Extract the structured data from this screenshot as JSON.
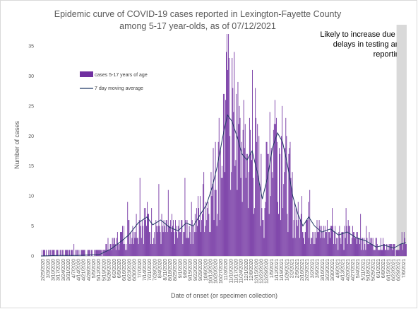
{
  "chart_data": {
    "type": "bar",
    "title": "Epidemic curve of COVID-19 cases reported in Lexington-Fayette County among 5-17 year-olds, as of 07/12/2021",
    "xlabel": "Date of onset (or specimen collection)",
    "ylabel": "Number of cases",
    "ylim": [
      0,
      35
    ],
    "yticks": [
      0,
      5,
      10,
      15,
      20,
      25,
      30,
      35
    ],
    "grid": false,
    "legend": "upper-left",
    "annotation": "Likely to increase due to delays in testing and reporting",
    "x_start": "2020-02-25",
    "x_end": "2021-07-12",
    "x_tick_labels": [
      "2/25/2020",
      "3/3/2020",
      "3/10/2020",
      "3/17/2020",
      "3/24/2020",
      "3/31/2020",
      "4/7/2020",
      "4/14/2020",
      "4/21/2020",
      "4/28/2020",
      "5/5/2020",
      "5/12/2020",
      "5/19/2020",
      "5/26/2020",
      "6/2/2020",
      "6/9/2020",
      "6/16/2020",
      "6/23/2020",
      "6/30/2020",
      "7/7/2020",
      "7/14/2020",
      "7/21/2020",
      "7/28/2020",
      "8/4/2020",
      "8/11/2020",
      "8/18/2020",
      "8/25/2020",
      "9/1/2020",
      "9/8/2020",
      "9/15/2020",
      "9/22/2020",
      "9/29/2020",
      "10/6/2020",
      "10/13/2020",
      "10/20/2020",
      "10/27/2020",
      "11/3/2020",
      "11/10/2020",
      "11/17/2020",
      "11/24/2020",
      "12/1/2020",
      "12/8/2020",
      "12/15/2020",
      "12/22/2020",
      "12/29/2020",
      "1/5/2021",
      "1/12/2021",
      "1/19/2021",
      "1/26/2021",
      "2/2/2021",
      "2/9/2021",
      "2/16/2021",
      "2/23/2021",
      "3/2/2021",
      "3/9/2021",
      "3/16/2021",
      "3/23/2021",
      "3/30/2021",
      "4/6/2021",
      "4/13/2021",
      "4/20/2021",
      "4/27/2021",
      "5/4/2021",
      "5/11/2021",
      "5/18/2021",
      "5/25/2021",
      "6/1/2021",
      "6/8/2021",
      "6/15/2021",
      "6/22/2021",
      "6/29/2021",
      "7/6/2021"
    ],
    "shaded_region": {
      "from": "2021-06-29",
      "to": "2021-07-12"
    },
    "series": [
      {
        "name": "cases 5-17 years of age",
        "kind": "bar",
        "color": "#7030a0",
        "anchors": [
          [
            "2020-02-25",
            0
          ],
          [
            "2020-03-14",
            1
          ],
          [
            "2020-03-15",
            0
          ],
          [
            "2020-04-10",
            1
          ],
          [
            "2020-04-11",
            0
          ],
          [
            "2020-05-20",
            1
          ],
          [
            "2020-06-01",
            2
          ],
          [
            "2020-06-15",
            3
          ],
          [
            "2020-07-01",
            5
          ],
          [
            "2020-07-15",
            6
          ],
          [
            "2020-08-01",
            5
          ],
          [
            "2020-08-15",
            4
          ],
          [
            "2020-09-01",
            4
          ],
          [
            "2020-09-15",
            5
          ],
          [
            "2020-10-01",
            7
          ],
          [
            "2020-10-15",
            10
          ],
          [
            "2020-10-25",
            14
          ],
          [
            "2020-11-01",
            20
          ],
          [
            "2020-11-08",
            24
          ],
          [
            "2020-11-15",
            22
          ],
          [
            "2020-11-22",
            19
          ],
          [
            "2020-12-01",
            16
          ],
          [
            "2020-12-10",
            16
          ],
          [
            "2020-12-20",
            14
          ],
          [
            "2020-12-28",
            8
          ],
          [
            "2021-01-03",
            16
          ],
          [
            "2021-01-10",
            20
          ],
          [
            "2021-01-17",
            19
          ],
          [
            "2021-01-24",
            16
          ],
          [
            "2021-02-01",
            11
          ],
          [
            "2021-02-08",
            8
          ],
          [
            "2021-02-15",
            5
          ],
          [
            "2021-02-25",
            6
          ],
          [
            "2021-03-05",
            5
          ],
          [
            "2021-03-15",
            4
          ],
          [
            "2021-04-01",
            4
          ],
          [
            "2021-04-15",
            4
          ],
          [
            "2021-05-01",
            3
          ],
          [
            "2021-05-15",
            3
          ],
          [
            "2021-06-01",
            2
          ],
          [
            "2021-06-15",
            2
          ],
          [
            "2021-07-01",
            1
          ],
          [
            "2021-07-12",
            2
          ]
        ],
        "peaks": [
          [
            "2020-06-23",
            9
          ],
          [
            "2020-07-10",
            13
          ],
          [
            "2020-08-05",
            12
          ],
          [
            "2020-08-18",
            11
          ],
          [
            "2020-09-10",
            13
          ],
          [
            "2020-10-06",
            14
          ],
          [
            "2020-10-22",
            19
          ],
          [
            "2020-11-03",
            27
          ],
          [
            "2020-11-08",
            31
          ],
          [
            "2020-11-14",
            33
          ],
          [
            "2020-11-20",
            27
          ],
          [
            "2020-12-02",
            22
          ],
          [
            "2020-12-12",
            31
          ],
          [
            "2020-12-16",
            28
          ],
          [
            "2021-01-12",
            26
          ],
          [
            "2021-01-05",
            24
          ],
          [
            "2021-01-22",
            25
          ],
          [
            "2021-02-02",
            19
          ],
          [
            "2021-02-18",
            10
          ],
          [
            "2021-03-01",
            11
          ],
          [
            "2021-04-01",
            8
          ],
          [
            "2021-04-20",
            8
          ],
          [
            "2021-05-10",
            7
          ],
          [
            "2021-06-10",
            3
          ],
          [
            "2021-07-06",
            4
          ],
          [
            "2021-07-09",
            4
          ]
        ]
      },
      {
        "name": "7 day moving average",
        "kind": "line",
        "color": "#1f3864",
        "values": [
          [
            "2020-02-25",
            0
          ],
          [
            "2020-03-20",
            0.1
          ],
          [
            "2020-04-15",
            0.1
          ],
          [
            "2020-05-15",
            0.2
          ],
          [
            "2020-06-01",
            1.2
          ],
          [
            "2020-06-15",
            2.5
          ],
          [
            "2020-06-25",
            3.5
          ],
          [
            "2020-07-08",
            5.5
          ],
          [
            "2020-07-20",
            6.5
          ],
          [
            "2020-07-28",
            5.2
          ],
          [
            "2020-08-08",
            6.0
          ],
          [
            "2020-08-20",
            4.8
          ],
          [
            "2020-09-01",
            4.2
          ],
          [
            "2020-09-12",
            5.5
          ],
          [
            "2020-09-22",
            5.0
          ],
          [
            "2020-10-01",
            6.8
          ],
          [
            "2020-10-10",
            8.5
          ],
          [
            "2020-10-18",
            11.5
          ],
          [
            "2020-10-25",
            15.0
          ],
          [
            "2020-11-01",
            19.5
          ],
          [
            "2020-11-08",
            23.5
          ],
          [
            "2020-11-14",
            22.5
          ],
          [
            "2020-11-21",
            20.0
          ],
          [
            "2020-11-28",
            17.0
          ],
          [
            "2020-12-05",
            16.0
          ],
          [
            "2020-12-12",
            17.5
          ],
          [
            "2020-12-19",
            14.0
          ],
          [
            "2020-12-26",
            9.5
          ],
          [
            "2021-01-02",
            13.0
          ],
          [
            "2021-01-09",
            18.0
          ],
          [
            "2021-01-16",
            20.5
          ],
          [
            "2021-01-23",
            19.0
          ],
          [
            "2021-01-30",
            15.0
          ],
          [
            "2021-02-06",
            10.0
          ],
          [
            "2021-02-13",
            7.0
          ],
          [
            "2021-02-20",
            5.0
          ],
          [
            "2021-02-28",
            6.5
          ],
          [
            "2021-03-08",
            5.0
          ],
          [
            "2021-03-18",
            4.0
          ],
          [
            "2021-03-30",
            4.5
          ],
          [
            "2021-04-10",
            3.5
          ],
          [
            "2021-04-22",
            4.0
          ],
          [
            "2021-05-05",
            3.0
          ],
          [
            "2021-05-18",
            2.5
          ],
          [
            "2021-06-01",
            1.5
          ],
          [
            "2021-06-12",
            1.8
          ],
          [
            "2021-06-25",
            1.3
          ],
          [
            "2021-07-05",
            2.0
          ],
          [
            "2021-07-12",
            2.2
          ]
        ]
      }
    ]
  }
}
